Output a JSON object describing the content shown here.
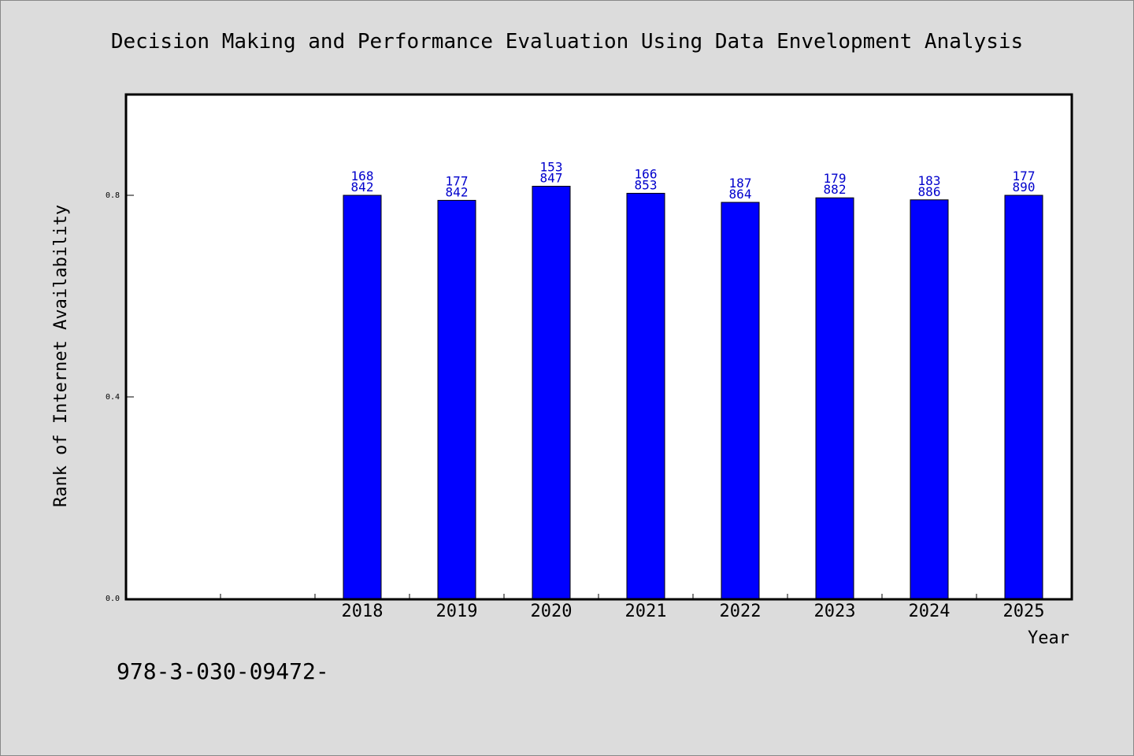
{
  "chart_data": {
    "type": "bar",
    "title": "Decision Making and Performance Evaluation Using Data Envelopment Analysis",
    "xlabel": "Year",
    "ylabel": "Rank of Internet Availability",
    "categories": [
      "2018",
      "2019",
      "2020",
      "2021",
      "2022",
      "2023",
      "2024",
      "2025"
    ],
    "values": [
      0.8,
      0.79,
      0.818,
      0.804,
      0.786,
      0.795,
      0.791,
      0.8
    ],
    "data_labels": [
      [
        "168",
        "842"
      ],
      [
        "177",
        "842"
      ],
      [
        "153",
        "847"
      ],
      [
        "166",
        "853"
      ],
      [
        "187",
        "864"
      ],
      [
        "179",
        "882"
      ],
      [
        "183",
        "886"
      ],
      [
        "177",
        "890"
      ]
    ],
    "yticks": [
      "0.0",
      "0.4",
      "0.8"
    ],
    "ylim": [
      0,
      1.0
    ],
    "grid": false,
    "colors": {
      "bar": "#0000ff",
      "bar_edge": "#000000",
      "label": "#0000cc",
      "background": "#dcdcdc",
      "plot": "#ffffff"
    }
  },
  "footer_text": "978-3-030-09472-"
}
